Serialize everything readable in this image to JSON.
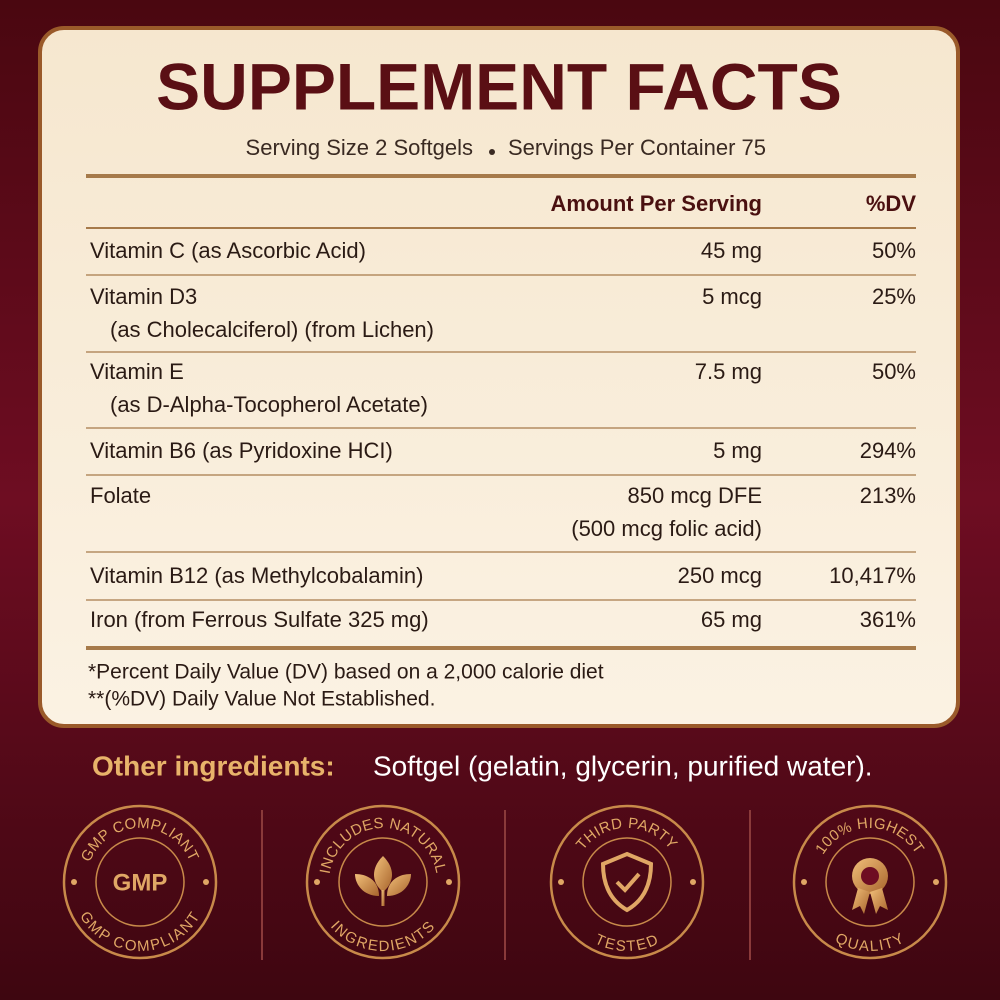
{
  "title": "SUPPLEMENT FACTS",
  "serving": {
    "size": "Serving Size 2 Softgels",
    "per_container": "Servings Per Container 75"
  },
  "table": {
    "headers": {
      "amount": "Amount Per Serving",
      "dv": "%DV"
    },
    "rows": [
      {
        "name": [
          "Vitamin C (as Ascorbic Acid)"
        ],
        "amount": [
          "45 mg"
        ],
        "dv": "50%"
      },
      {
        "name": [
          "Vitamin D3",
          "(as Cholecalciferol) (from Lichen)"
        ],
        "amount": [
          "5 mcg"
        ],
        "dv": "25%"
      },
      {
        "name": [
          "Vitamin E",
          "(as D-Alpha-Tocopherol Acetate)"
        ],
        "amount": [
          "7.5 mg"
        ],
        "dv": "50%"
      },
      {
        "name": [
          "Vitamin B6 (as Pyridoxine HCI)"
        ],
        "amount": [
          "5 mg"
        ],
        "dv": "294%"
      },
      {
        "name": [
          "Folate"
        ],
        "amount": [
          "850 mcg DFE",
          "(500 mcg folic acid)"
        ],
        "dv": "213%"
      },
      {
        "name": [
          "Vitamin B12 (as Methylcobalamin)"
        ],
        "amount": [
          "250 mcg"
        ],
        "dv": "10,417%"
      },
      {
        "name": [
          "Iron (from Ferrous Sulfate 325 mg)"
        ],
        "amount": [
          "65 mg"
        ],
        "dv": "361%"
      }
    ]
  },
  "footnotes": [
    "*Percent Daily Value (DV) based on a 2,000 calorie diet",
    "**(%DV) Daily Value Not Established."
  ],
  "other_ingredients": {
    "label": "Other ingredients:",
    "text": "Softgel (gelatin, glycerin, purified water)."
  },
  "badges": [
    {
      "top": "GMP COMPLIANT",
      "center": "GMP",
      "bottom": "GMP COMPLIANT"
    },
    {
      "top": "INCLUDES NATURAL",
      "bottom": "INGREDIENTS"
    },
    {
      "top": "THIRD PARTY",
      "bottom": "TESTED"
    },
    {
      "top": "100% HIGHEST",
      "bottom": "QUALITY"
    }
  ]
}
